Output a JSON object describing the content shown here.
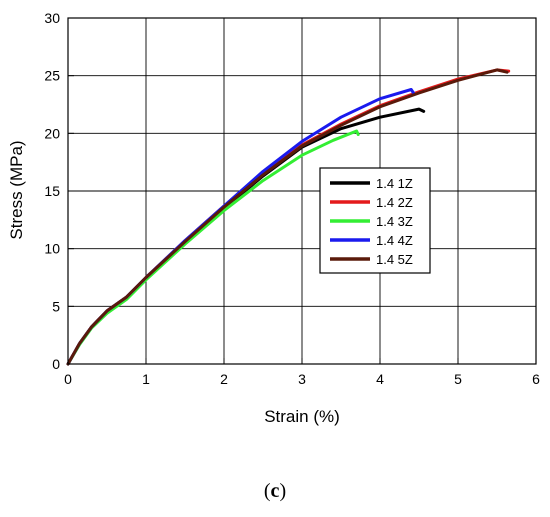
{
  "chart_data": {
    "type": "line",
    "title": "",
    "xlabel": "Strain (%)",
    "ylabel": "Stress (MPa)",
    "xlim": [
      0,
      6
    ],
    "ylim": [
      0,
      30
    ],
    "x_ticks": [
      "0",
      "1",
      "2",
      "3",
      "4",
      "5",
      "6"
    ],
    "y_ticks": [
      "0",
      "5",
      "10",
      "15",
      "20",
      "25",
      "30"
    ],
    "grid": true,
    "legend_position": "center-right",
    "series": [
      {
        "name": "1.4 1Z",
        "color": "#000000",
        "points": [
          [
            0,
            0
          ],
          [
            0.15,
            1.8
          ],
          [
            0.3,
            3.2
          ],
          [
            0.5,
            4.6
          ],
          [
            0.75,
            5.8
          ],
          [
            1,
            7.5
          ],
          [
            1.5,
            10.6
          ],
          [
            2,
            13.5
          ],
          [
            2.5,
            16.3
          ],
          [
            3,
            18.8
          ],
          [
            3.5,
            20.4
          ],
          [
            4,
            21.4
          ],
          [
            4.5,
            22.1
          ],
          [
            4.56,
            21.9
          ]
        ]
      },
      {
        "name": "1.4 2Z",
        "color": "#e41a1c",
        "points": [
          [
            0,
            0
          ],
          [
            0.15,
            1.8
          ],
          [
            0.3,
            3.2
          ],
          [
            0.5,
            4.6
          ],
          [
            0.75,
            5.8
          ],
          [
            1,
            7.5
          ],
          [
            1.5,
            10.7
          ],
          [
            2,
            13.7
          ],
          [
            2.5,
            16.5
          ],
          [
            3,
            19.0
          ],
          [
            3.5,
            20.8
          ],
          [
            4,
            22.4
          ],
          [
            4.5,
            23.6
          ],
          [
            5,
            24.7
          ],
          [
            5.5,
            25.5
          ],
          [
            5.65,
            25.4
          ]
        ]
      },
      {
        "name": "1.4 3Z",
        "color": "#33ee33",
        "points": [
          [
            0,
            0
          ],
          [
            0.15,
            1.7
          ],
          [
            0.3,
            3.1
          ],
          [
            0.5,
            4.4
          ],
          [
            0.75,
            5.6
          ],
          [
            1,
            7.3
          ],
          [
            1.5,
            10.4
          ],
          [
            2,
            13.3
          ],
          [
            2.5,
            15.9
          ],
          [
            3,
            18.1
          ],
          [
            3.4,
            19.4
          ],
          [
            3.7,
            20.2
          ],
          [
            3.72,
            19.9
          ]
        ]
      },
      {
        "name": "1.4 4Z",
        "color": "#1a1aee",
        "points": [
          [
            0,
            0
          ],
          [
            0.15,
            1.8
          ],
          [
            0.3,
            3.2
          ],
          [
            0.5,
            4.6
          ],
          [
            0.75,
            5.8
          ],
          [
            1,
            7.5
          ],
          [
            1.5,
            10.7
          ],
          [
            2,
            13.7
          ],
          [
            2.5,
            16.7
          ],
          [
            3,
            19.3
          ],
          [
            3.5,
            21.4
          ],
          [
            4,
            23.0
          ],
          [
            4.4,
            23.8
          ],
          [
            4.43,
            23.5
          ]
        ]
      },
      {
        "name": "1.4 5Z",
        "color": "#5a1a0a",
        "points": [
          [
            0,
            0
          ],
          [
            0.15,
            1.8
          ],
          [
            0.3,
            3.2
          ],
          [
            0.5,
            4.6
          ],
          [
            0.75,
            5.8
          ],
          [
            1,
            7.5
          ],
          [
            1.5,
            10.6
          ],
          [
            2,
            13.6
          ],
          [
            2.5,
            16.4
          ],
          [
            3,
            18.9
          ],
          [
            3.5,
            20.7
          ],
          [
            4,
            22.3
          ],
          [
            4.5,
            23.5
          ],
          [
            5,
            24.6
          ],
          [
            5.5,
            25.5
          ],
          [
            5.63,
            25.3
          ]
        ]
      }
    ]
  },
  "panel_label": {
    "open": "(",
    "letter": "c",
    "close": ")"
  }
}
